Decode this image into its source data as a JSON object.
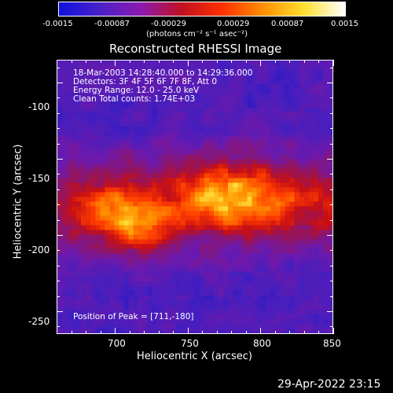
{
  "colorbar": {
    "tick_labels": [
      "-0.0015",
      "-0.00087",
      "-0.00029",
      "0.00029",
      "0.00087",
      "0.0015"
    ],
    "unit_label": "(photons cm⁻² s⁻¹ asec⁻²)",
    "colors": [
      "#1010e0",
      "#4a20c8",
      "#8a1ab0",
      "#c01020",
      "#ff3000",
      "#ff9000",
      "#ffe030",
      "#ffffff"
    ]
  },
  "title": "Reconstructed RHESSI Image",
  "info": {
    "line1": "18-Mar-2003 14:28:40.000 to 14:29:36.000",
    "line2": "Detectors: 3F 4F 5F 6F 7F 8F, Att 0",
    "line3": "Energy Range: 12.0 - 25.0 keV",
    "line4": "Clean     Total counts: 1.74E+03"
  },
  "peak": "Position of Peak = [711,-180]",
  "x_axis": {
    "label": "Heliocentric X (arcsec)",
    "ticks": [
      "700",
      "750",
      "800",
      "850"
    ],
    "range": [
      660,
      850
    ]
  },
  "y_axis": {
    "label": "Heliocentric Y (arcsec)",
    "ticks": [
      "-100",
      "-150",
      "-200",
      "-250"
    ],
    "range": [
      -265,
      -85
    ]
  },
  "timestamp": "29-Apr-2022 23:15"
}
